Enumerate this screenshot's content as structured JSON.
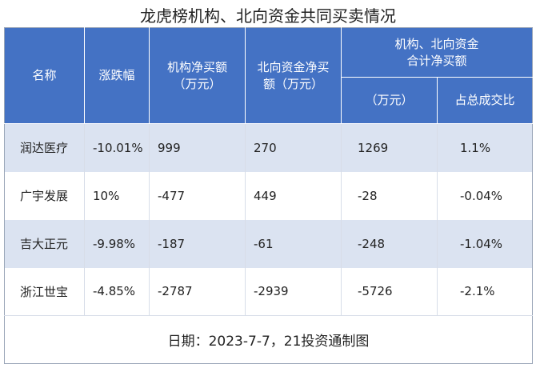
{
  "title": "龙虎榜机构、北向资金共同买卖情况",
  "headers": {
    "name": "名称",
    "change": "涨跌幅",
    "inst_line1": "机构净买额",
    "inst_line2": "（万元）",
    "north_line1": "北向资金净买",
    "north_line2": "额（万元）",
    "combined_line1": "机构、北向资金",
    "combined_line2": "合计净买额",
    "combined_sub_unit": "（万元）",
    "combined_sub_ratio": "占总成交比"
  },
  "rows": [
    {
      "name": "润达医疗",
      "change": "-10.01%",
      "inst": "999",
      "north": "270",
      "total": "1269",
      "ratio": "1.1%"
    },
    {
      "name": "广宇发展",
      "change": "10%",
      "inst": "-477",
      "north": "449",
      "total": "-28",
      "ratio": "-0.04%"
    },
    {
      "name": "吉大正元",
      "change": "-9.98%",
      "inst": "-187",
      "north": "-61",
      "total": "-248",
      "ratio": "-1.04%"
    },
    {
      "name": "浙江世宝",
      "change": "-4.85%",
      "inst": "-2787",
      "north": "-2939",
      "total": "-5726",
      "ratio": "-2.1%"
    }
  ],
  "footer": "日期：2023-7-7，21投资通制图",
  "colors": {
    "header_bg": "#4472c4",
    "band_bg": "#dbe3f1",
    "header_text": "#ffffff"
  }
}
